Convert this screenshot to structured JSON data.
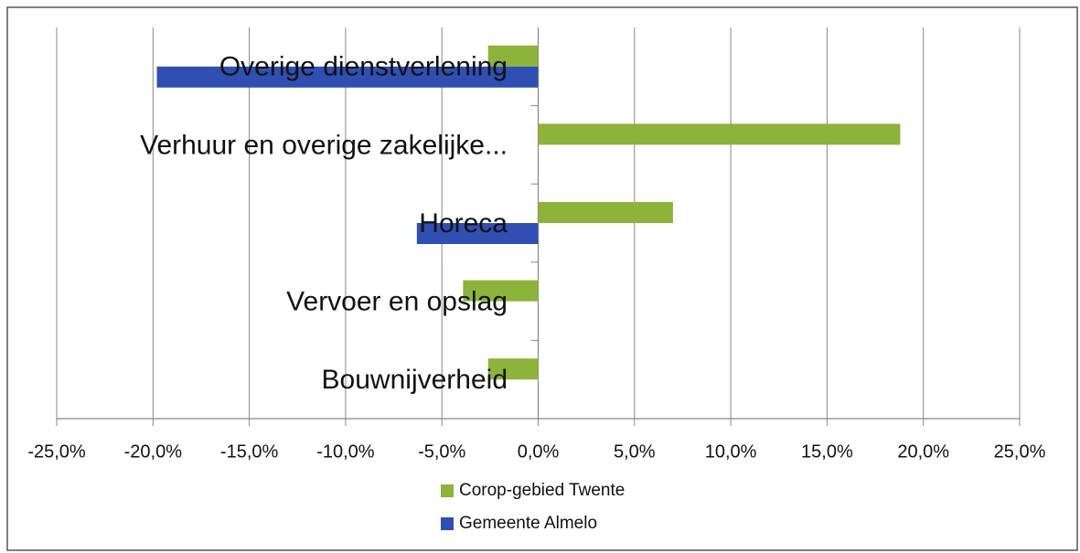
{
  "chart_data": {
    "type": "hbar",
    "categories": [
      "Overige dienstverlening",
      "Verhuur en overige zakelijke...",
      "Horeca",
      "Vervoer en opslag",
      "Bouwnijverheid"
    ],
    "series": [
      {
        "name": "Corop-gebied Twente",
        "color": "#8db33a",
        "values": [
          -2.6,
          18.8,
          7.0,
          -3.9,
          -2.6
        ]
      },
      {
        "name": "Gemeente Almelo",
        "color": "#2f4fb3",
        "values": [
          -19.8,
          null,
          -6.3,
          null,
          null
        ]
      }
    ],
    "xlim": [
      -25,
      25
    ],
    "xticks": [
      {
        "value": -25,
        "label": "-25,0%"
      },
      {
        "value": -20,
        "label": "-20,0%"
      },
      {
        "value": -15,
        "label": "-15,0%"
      },
      {
        "value": -10,
        "label": "-10,0%"
      },
      {
        "value": -5,
        "label": "-5,0%"
      },
      {
        "value": 0,
        "label": "0,0%"
      },
      {
        "value": 5,
        "label": "5,0%"
      },
      {
        "value": 10,
        "label": "10,0%"
      },
      {
        "value": 15,
        "label": "15,0%"
      },
      {
        "value": 20,
        "label": "20,0%"
      },
      {
        "value": 25,
        "label": "25,0%"
      }
    ],
    "grid": true,
    "legend": "bottom"
  }
}
